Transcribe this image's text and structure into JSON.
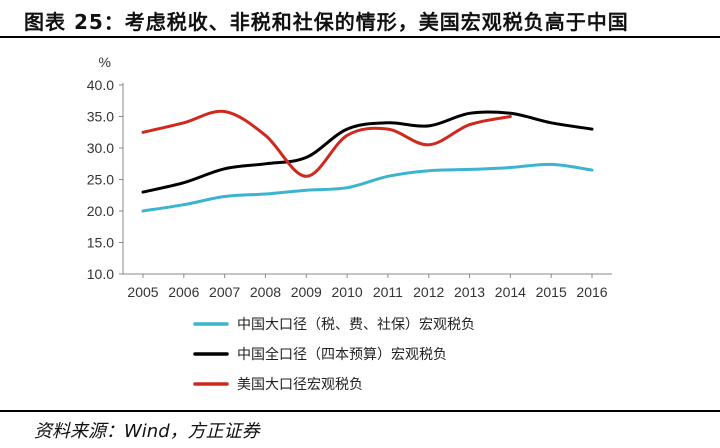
{
  "title": "图表 25：考虑税收、非税和社保的情形，美国宏观税负高于中国",
  "source": "资料来源：Wind，方正证券",
  "chart_data": {
    "type": "line",
    "title": "",
    "xlabel": "",
    "ylabel": "%",
    "x": [
      2005,
      2006,
      2007,
      2008,
      2009,
      2010,
      2011,
      2012,
      2013,
      2014,
      2015,
      2016
    ],
    "x_tick_labels": [
      "2005",
      "2006",
      "2007",
      "2008",
      "2009",
      "2010",
      "2011",
      "2012",
      "2013",
      "2014",
      "2015",
      "2016"
    ],
    "ylim": [
      10,
      40
    ],
    "y_ticks": [
      10,
      15,
      20,
      25,
      30,
      35,
      40
    ],
    "y_tick_labels": [
      "10.0",
      "15.0",
      "20.0",
      "25.0",
      "30.0",
      "35.0",
      "40.0"
    ],
    "grid": false,
    "legend_position": "bottom-left",
    "series": [
      {
        "name": "中国大口径（税、费、社保）宏观税负",
        "color": "#3cb4d0",
        "x": [
          2005,
          2006,
          2007,
          2008,
          2009,
          2010,
          2011,
          2012,
          2013,
          2014,
          2015,
          2016
        ],
        "values": [
          20.0,
          21.0,
          22.3,
          22.7,
          23.3,
          23.7,
          25.5,
          26.4,
          26.6,
          26.9,
          27.4,
          26.5
        ]
      },
      {
        "name": "中国全口径（四本预算）宏观税负",
        "color": "#000000",
        "x": [
          2005,
          2006,
          2007,
          2008,
          2009,
          2010,
          2011,
          2012,
          2013,
          2014,
          2015,
          2016
        ],
        "values": [
          23.0,
          24.5,
          26.7,
          27.5,
          28.5,
          33.0,
          34.0,
          33.5,
          35.5,
          35.5,
          34.0,
          33.0
        ]
      },
      {
        "name": "美国大口径宏观税负",
        "color": "#d0281c",
        "x": [
          2005,
          2006,
          2007,
          2008,
          2009,
          2010,
          2011,
          2012,
          2013,
          2014
        ],
        "values": [
          32.5,
          34.0,
          35.8,
          32.0,
          25.5,
          32.0,
          33.0,
          30.5,
          33.7,
          35.0
        ]
      }
    ]
  }
}
